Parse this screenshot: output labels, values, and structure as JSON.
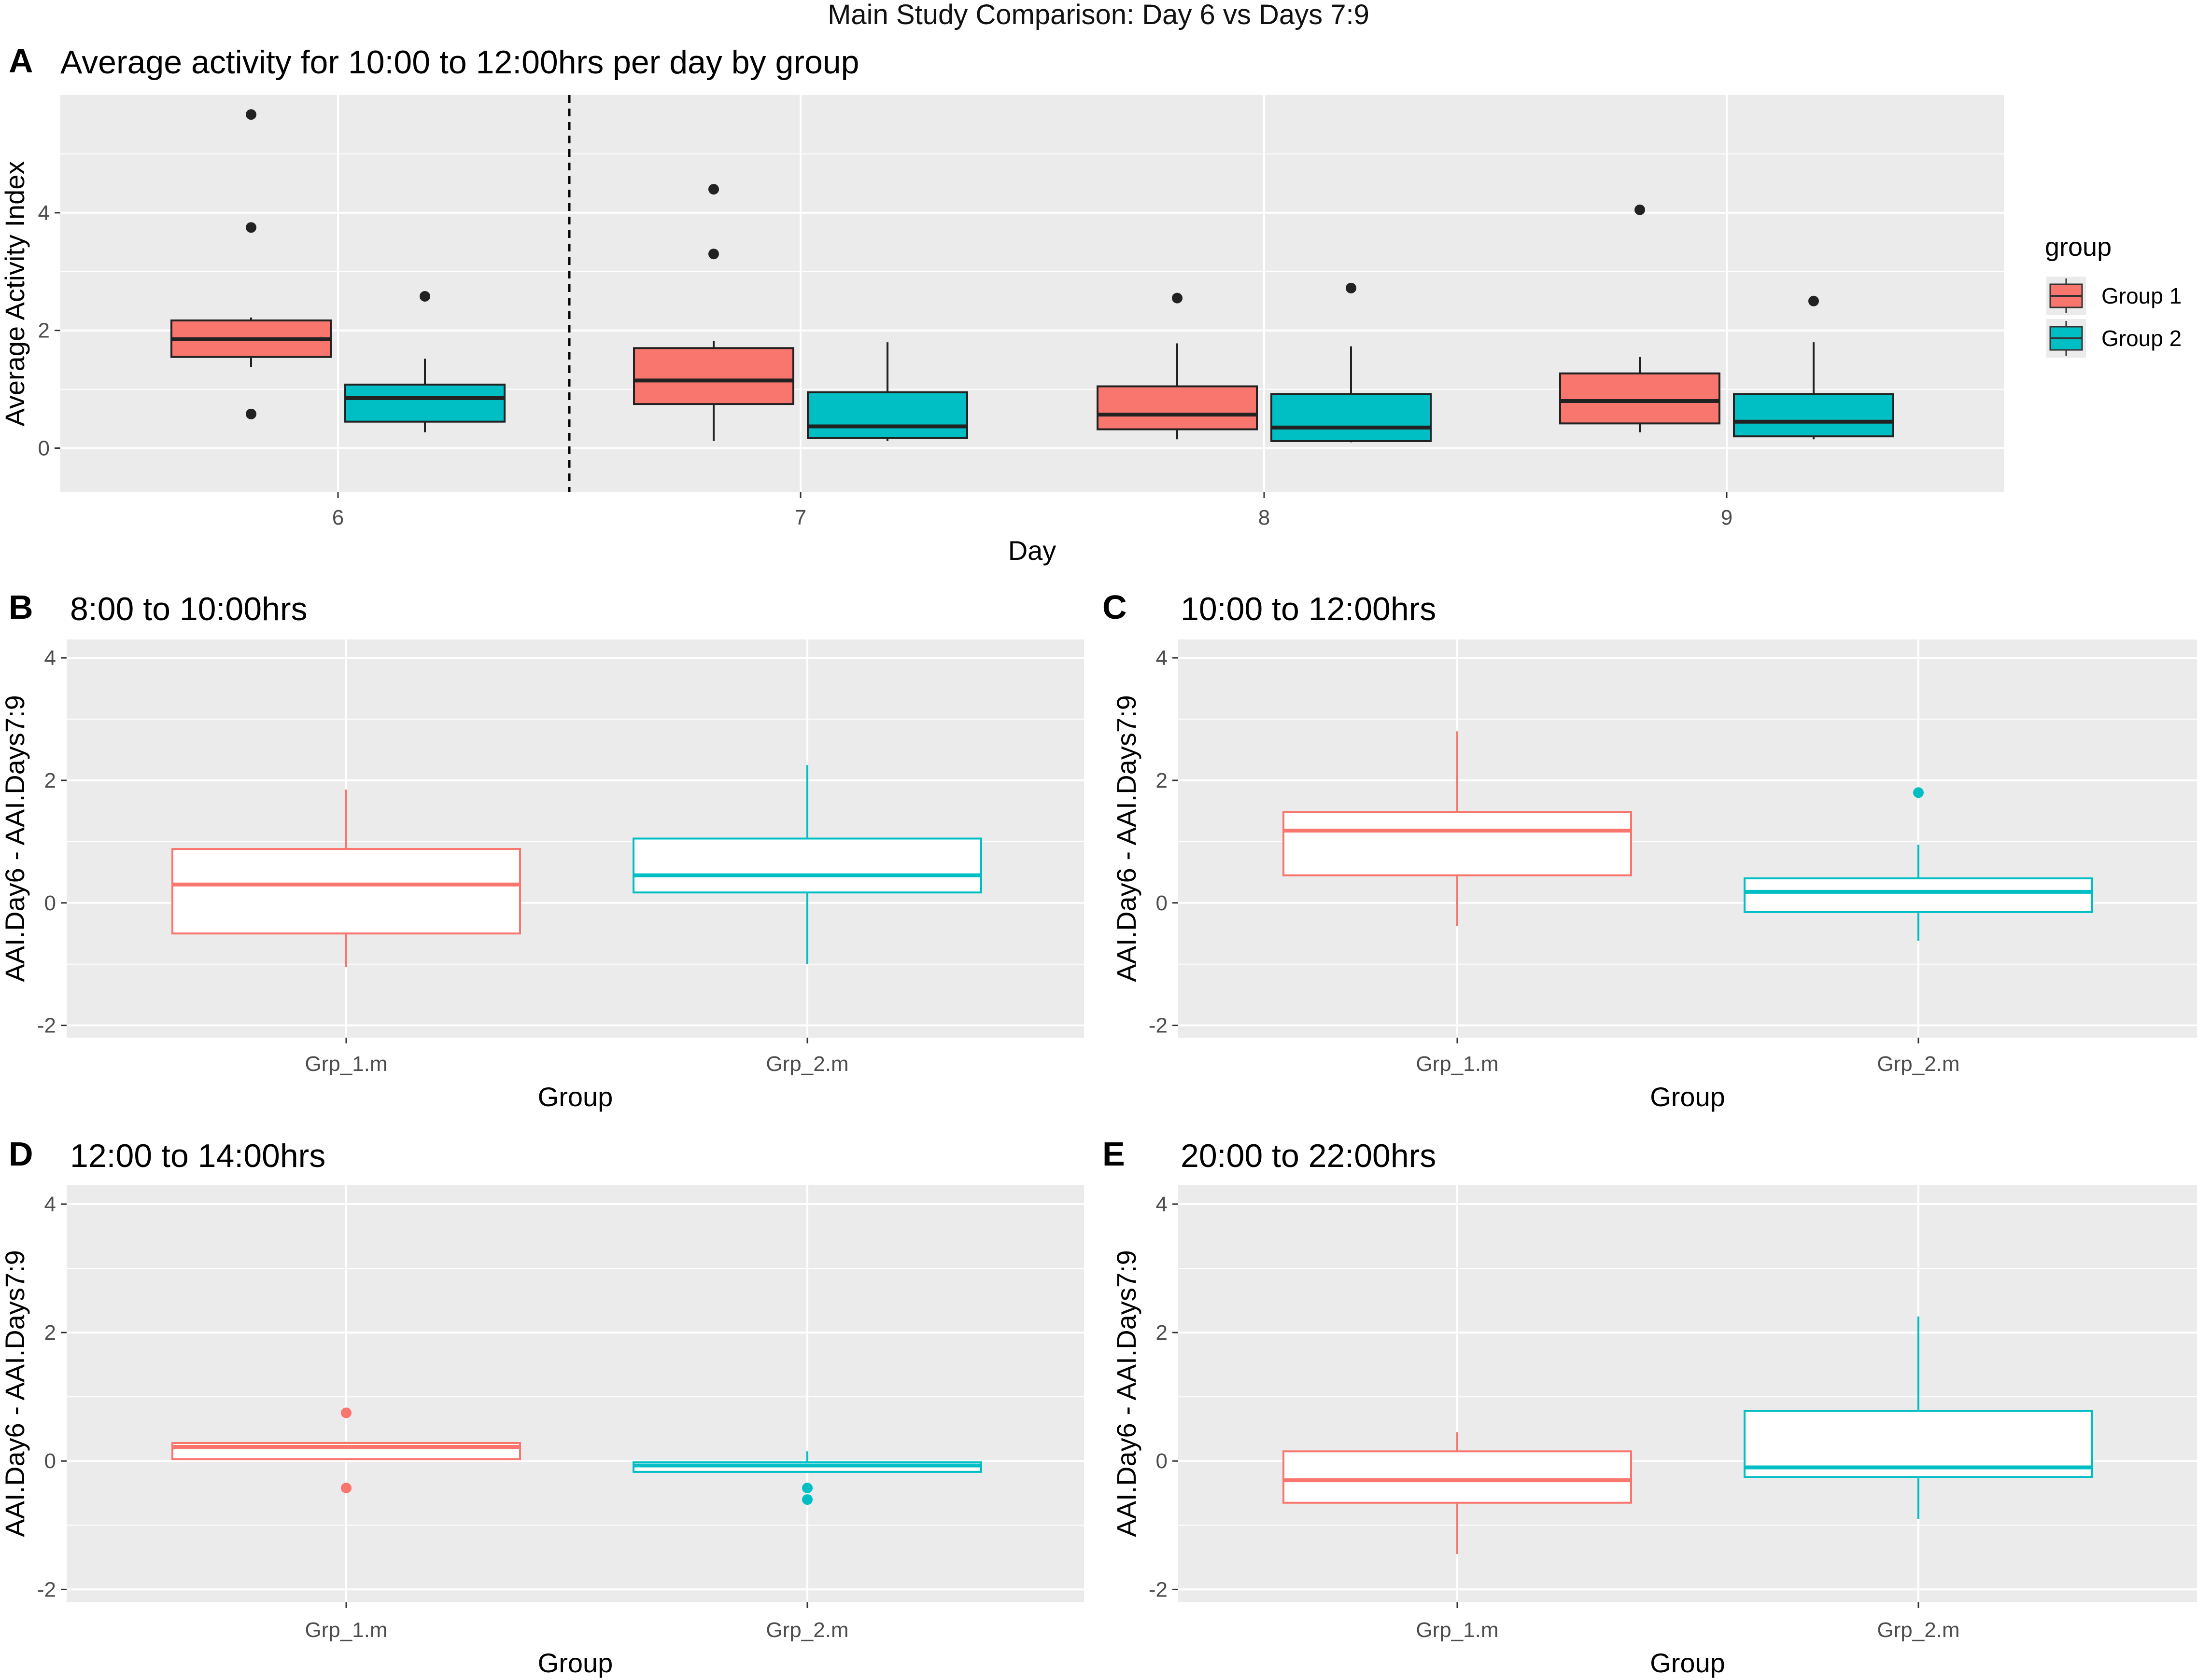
{
  "figure_title": "Main Study Comparison: Day 6 vs Days 7:9",
  "colors": {
    "group1": "#F8766D",
    "group2": "#00BFC4",
    "panel_bg": "#EBEBEB",
    "grid": "#FFFFFF"
  },
  "legend": {
    "title": "group",
    "items": [
      "Group 1",
      "Group 2"
    ]
  },
  "chart_data": [
    {
      "letter": "A",
      "type": "box",
      "title": "Average activity for 10:00 to 12:00hrs per day by group",
      "xlabel": "Day",
      "ylabel": "Average Activity Index",
      "ylim": [
        -0.75,
        6.0
      ],
      "yticks": [
        0,
        2,
        4
      ],
      "categories": [
        "6",
        "7",
        "8",
        "9"
      ],
      "reference_line": {
        "x_between": [
          "6",
          "7"
        ],
        "style": "dashed"
      },
      "series": [
        {
          "name": "Group 1",
          "fill": true,
          "boxes": [
            {
              "category": "6",
              "q1": 1.55,
              "median": 1.85,
              "q3": 2.17,
              "whisker_low": 1.38,
              "whisker_high": 2.22,
              "outliers": [
                5.67,
                3.75,
                0.58
              ]
            },
            {
              "category": "7",
              "q1": 0.75,
              "median": 1.15,
              "q3": 1.7,
              "whisker_low": 0.12,
              "whisker_high": 1.82,
              "outliers": [
                4.4,
                3.3
              ]
            },
            {
              "category": "8",
              "q1": 0.32,
              "median": 0.57,
              "q3": 1.05,
              "whisker_low": 0.15,
              "whisker_high": 1.78,
              "outliers": [
                2.55
              ]
            },
            {
              "category": "9",
              "q1": 0.42,
              "median": 0.8,
              "q3": 1.27,
              "whisker_low": 0.27,
              "whisker_high": 1.55,
              "outliers": [
                4.05
              ]
            }
          ]
        },
        {
          "name": "Group 2",
          "fill": true,
          "boxes": [
            {
              "category": "6",
              "q1": 0.45,
              "median": 0.85,
              "q3": 1.08,
              "whisker_low": 0.27,
              "whisker_high": 1.52,
              "outliers": [
                2.58
              ]
            },
            {
              "category": "7",
              "q1": 0.17,
              "median": 0.37,
              "q3": 0.95,
              "whisker_low": 0.12,
              "whisker_high": 1.8,
              "outliers": []
            },
            {
              "category": "8",
              "q1": 0.12,
              "median": 0.35,
              "q3": 0.92,
              "whisker_low": 0.1,
              "whisker_high": 1.73,
              "outliers": [
                2.72
              ]
            },
            {
              "category": "9",
              "q1": 0.2,
              "median": 0.45,
              "q3": 0.92,
              "whisker_low": 0.15,
              "whisker_high": 1.8,
              "outliers": [
                2.5
              ]
            }
          ]
        }
      ]
    },
    {
      "letter": "B",
      "type": "box",
      "title": "8:00 to 10:00hrs",
      "xlabel": "Group",
      "ylabel": "AAI.Day6 - AAI.Days7:9",
      "ylim": [
        -2.2,
        4.3
      ],
      "yticks": [
        -2,
        0,
        2,
        4
      ],
      "categories": [
        "Grp_1.m",
        "Grp_2.m"
      ],
      "series": [
        {
          "name": "Group 1",
          "fill": false,
          "boxes": [
            {
              "category": "Grp_1.m",
              "q1": -0.5,
              "median": 0.3,
              "q3": 0.88,
              "whisker_low": -1.05,
              "whisker_high": 1.85,
              "outliers": []
            }
          ]
        },
        {
          "name": "Group 2",
          "fill": false,
          "boxes": [
            {
              "category": "Grp_2.m",
              "q1": 0.17,
              "median": 0.45,
              "q3": 1.05,
              "whisker_low": -1.0,
              "whisker_high": 2.25,
              "outliers": []
            }
          ]
        }
      ]
    },
    {
      "letter": "C",
      "type": "box",
      "title": "10:00 to 12:00hrs",
      "xlabel": "Group",
      "ylabel": "AAI.Day6 - AAI.Days7:9",
      "ylim": [
        -2.2,
        4.3
      ],
      "yticks": [
        -2,
        0,
        2,
        4
      ],
      "categories": [
        "Grp_1.m",
        "Grp_2.m"
      ],
      "series": [
        {
          "name": "Group 1",
          "fill": false,
          "boxes": [
            {
              "category": "Grp_1.m",
              "q1": 0.45,
              "median": 1.18,
              "q3": 1.48,
              "whisker_low": -0.38,
              "whisker_high": 2.8,
              "outliers": []
            }
          ]
        },
        {
          "name": "Group 2",
          "fill": false,
          "boxes": [
            {
              "category": "Grp_2.m",
              "q1": -0.15,
              "median": 0.18,
              "q3": 0.4,
              "whisker_low": -0.62,
              "whisker_high": 0.95,
              "outliers": [
                1.8
              ]
            }
          ]
        }
      ]
    },
    {
      "letter": "D",
      "type": "box",
      "title": "12:00 to 14:00hrs",
      "xlabel": "Group",
      "ylabel": "AAI.Day6 - AAI.Days7:9",
      "ylim": [
        -2.2,
        4.3
      ],
      "yticks": [
        -2,
        0,
        2,
        4
      ],
      "categories": [
        "Grp_1.m",
        "Grp_2.m"
      ],
      "series": [
        {
          "name": "Group 1",
          "fill": false,
          "boxes": [
            {
              "category": "Grp_1.m",
              "q1": 0.03,
              "median": 0.22,
              "q3": 0.28,
              "whisker_low": 0.03,
              "whisker_high": 0.3,
              "outliers": [
                0.75,
                -0.42
              ]
            }
          ]
        },
        {
          "name": "Group 2",
          "fill": false,
          "boxes": [
            {
              "category": "Grp_2.m",
              "q1": -0.17,
              "median": -0.07,
              "q3": -0.02,
              "whisker_low": -0.17,
              "whisker_high": 0.15,
              "outliers": [
                -0.42,
                -0.6
              ]
            }
          ]
        }
      ]
    },
    {
      "letter": "E",
      "type": "box",
      "title": "20:00 to 22:00hrs",
      "xlabel": "Group",
      "ylabel": "AAI.Day6 - AAI.Days7:9",
      "ylim": [
        -2.2,
        4.3
      ],
      "yticks": [
        -2,
        0,
        2,
        4
      ],
      "categories": [
        "Grp_1.m",
        "Grp_2.m"
      ],
      "series": [
        {
          "name": "Group 1",
          "fill": false,
          "boxes": [
            {
              "category": "Grp_1.m",
              "q1": -0.65,
              "median": -0.3,
              "q3": 0.15,
              "whisker_low": -1.45,
              "whisker_high": 0.45,
              "outliers": []
            }
          ]
        },
        {
          "name": "Group 2",
          "fill": false,
          "boxes": [
            {
              "category": "Grp_2.m",
              "q1": -0.25,
              "median": -0.1,
              "q3": 0.78,
              "whisker_low": -0.9,
              "whisker_high": 2.25,
              "outliers": []
            }
          ]
        }
      ]
    }
  ]
}
